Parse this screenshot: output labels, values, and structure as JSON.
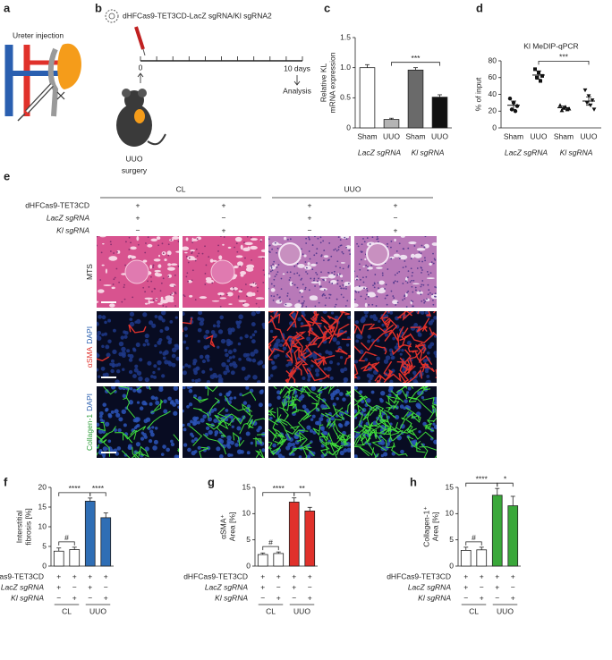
{
  "panel_a": {
    "panel": "a",
    "label": "Ureter injection"
  },
  "panel_b": {
    "panel": "b",
    "title": "dHFCas9-TET3CD-LacZ sgRNA/Kl sgRNA2",
    "start": "0",
    "end": "10 days",
    "end_label": "Analysis",
    "surgery": [
      "UUO",
      "surgery"
    ]
  },
  "panel_e": {
    "panel": "e",
    "groups": [
      "CL",
      "UUO"
    ],
    "row_labels": [
      [
        {
          "text": "MTS",
          "color": "#222222"
        }
      ],
      [
        {
          "text": "αSMA",
          "color": "#e0312b"
        },
        {
          "text": "DAPI",
          "color": "#2a5fb0"
        }
      ],
      [
        {
          "text": "Collagen-1",
          "color": "#2e9e3a"
        },
        {
          "text": "DAPI",
          "color": "#2a5fb0"
        }
      ]
    ]
  },
  "conditions": {
    "rows": [
      "dHFCas9-TET3CD",
      "LacZ sgRNA",
      "Kl sgRNA"
    ],
    "signs": [
      [
        "+",
        "+",
        "+",
        "+"
      ],
      [
        "+",
        "−",
        "+",
        "−"
      ],
      [
        "−",
        "+",
        "−",
        "+"
      ]
    ],
    "groups": [
      "CL",
      "UUO"
    ]
  },
  "chart_data": [
    {
      "panel": "c",
      "type": "bar",
      "ylabel": [
        "Relative KL",
        "mRNA expression"
      ],
      "categories": [
        "Sham",
        "UUO",
        "Sham",
        "UUO"
      ],
      "groups": [
        "LacZ sgRNA",
        "Kl sgRNA"
      ],
      "group_colors": [
        "#222222",
        "#e0312b"
      ],
      "values": [
        1.0,
        0.14,
        0.96,
        0.51
      ],
      "errors": [
        0.05,
        0.02,
        0.04,
        0.04
      ],
      "colors": [
        "#ffffff",
        "#b4b4b4",
        "#6a6a6a",
        "#111111"
      ],
      "ylim": [
        0,
        1.5
      ],
      "yticks": [
        0,
        0.5,
        {
          "value": 1,
          "label": "1.0"
        },
        1.5
      ],
      "significance": [
        "***"
      ]
    },
    {
      "panel": "d",
      "type": "scatter",
      "title": "Kl MeDIP-qPCR",
      "ylabel": [
        "% of input"
      ],
      "categories": [
        "Sham",
        "UUO",
        "Sham",
        "UUO"
      ],
      "groups": [
        "LacZ sgRNA",
        "Kl sgRNA"
      ],
      "group_colors": [
        "#222222",
        "#e0312b"
      ],
      "values": [
        27,
        63,
        24,
        32
      ],
      "errors": [
        5,
        5,
        2,
        5
      ],
      "points": [
        [
          35,
          30,
          26,
          22,
          20
        ],
        [
          70,
          66,
          62,
          60,
          56
        ],
        [
          27,
          24,
          22,
          21,
          25,
          23
        ],
        [
          45,
          38,
          33,
          30,
          27,
          22
        ]
      ],
      "markers": [
        "circle",
        "square",
        "triangle",
        "triangle-down"
      ],
      "ylim": [
        0,
        80
      ],
      "yticks": [
        0,
        20,
        40,
        60,
        80
      ],
      "significance": [
        "***"
      ]
    },
    {
      "panel": "f",
      "type": "bar",
      "ylabel": [
        "Interstitial",
        "fibrosis [%]"
      ],
      "ylabel_colors": [
        "#222222",
        "#222222"
      ],
      "values": [
        3.8,
        4.2,
        16.5,
        12.3
      ],
      "errors": [
        0.8,
        0.6,
        0.8,
        1.2
      ],
      "colors": [
        "#ffffff",
        "#ffffff",
        "#2f6eb5",
        "#2f6eb5"
      ],
      "ylim": [
        0,
        20
      ],
      "yticks": [
        0,
        5,
        10,
        15,
        20
      ],
      "significance": [
        "#",
        "****",
        "****"
      ]
    },
    {
      "panel": "g",
      "type": "bar",
      "ylabel": [
        "αSMA⁺",
        "Area [%]"
      ],
      "ylabel_colors": [
        "#e0312b",
        "#222222"
      ],
      "values": [
        2.2,
        2.4,
        12.2,
        10.5
      ],
      "errors": [
        0.3,
        0.3,
        0.8,
        0.7
      ],
      "colors": [
        "#ffffff",
        "#ffffff",
        "#e0312b",
        "#e0312b"
      ],
      "ylim": [
        0,
        15
      ],
      "yticks": [
        0,
        5,
        10,
        15
      ],
      "significance": [
        "#",
        "****",
        "**"
      ]
    },
    {
      "panel": "h",
      "type": "bar",
      "ylabel": [
        "Collagen-1⁺",
        "Area [%]"
      ],
      "ylabel_colors": [
        "#2e9e3a",
        "#222222"
      ],
      "values": [
        3.0,
        3.1,
        13.5,
        11.5
      ],
      "errors": [
        0.6,
        0.5,
        1.3,
        1.8
      ],
      "colors": [
        "#ffffff",
        "#ffffff",
        "#3aa83a",
        "#3aa83a"
      ],
      "ylim": [
        0,
        15
      ],
      "yticks": [
        0,
        5,
        10,
        15
      ],
      "significance": [
        "#",
        "****",
        "*"
      ]
    }
  ]
}
